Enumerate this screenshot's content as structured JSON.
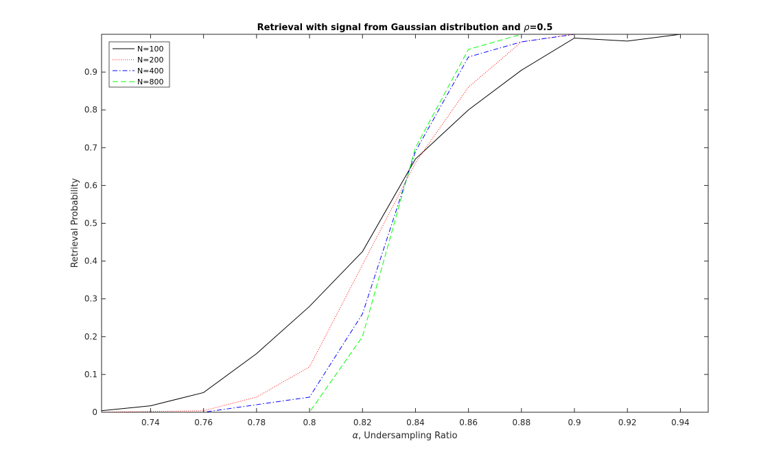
{
  "chart_data": {
    "type": "line",
    "title_prefix": "Retrieval with signal from Gaussian distribution and ",
    "title_symbol": "ρ",
    "title_suffix": "=0.5",
    "xlabel_symbol": "α",
    "xlabel_text": ", Undersampling Ratio",
    "ylabel": "Retrieval Probability",
    "xlim": [
      0.7215,
      0.9505
    ],
    "ylim": [
      0,
      1
    ],
    "x_ticks": [
      0.74,
      0.76,
      0.78,
      0.8,
      0.82,
      0.84,
      0.86,
      0.88,
      0.9,
      0.92,
      0.94
    ],
    "x_tick_labels": [
      "0.74",
      "0.76",
      "0.78",
      "0.8",
      "0.82",
      "0.84",
      "0.86",
      "0.88",
      "0.9",
      "0.92",
      "0.94"
    ],
    "y_ticks": [
      0,
      0.1,
      0.2,
      0.3,
      0.4,
      0.5,
      0.6,
      0.7,
      0.8,
      0.9
    ],
    "y_tick_labels": [
      "0",
      "0.1",
      "0.2",
      "0.3",
      "0.4",
      "0.5",
      "0.6",
      "0.7",
      "0.8",
      "0.9"
    ],
    "grid": false,
    "legend_position": "top-left",
    "series": [
      {
        "name": "N=100",
        "color": "#000000",
        "dash": "",
        "x": [
          0.72,
          0.74,
          0.76,
          0.78,
          0.8,
          0.82,
          0.84,
          0.86,
          0.88,
          0.9,
          0.92,
          0.94
        ],
        "y": [
          0.003,
          0.017,
          0.052,
          0.155,
          0.28,
          0.425,
          0.67,
          0.8,
          0.905,
          0.99,
          0.982,
          1.0
        ]
      },
      {
        "name": "N=200",
        "color": "#ff0000",
        "dash": "1,2",
        "x": [
          0.72,
          0.74,
          0.76,
          0.78,
          0.8,
          0.82,
          0.84,
          0.86,
          0.88,
          0.9,
          0.92,
          0.94
        ],
        "y": [
          0.0,
          0.002,
          0.004,
          0.04,
          0.12,
          0.39,
          0.66,
          0.86,
          0.98,
          1.0,
          1.0,
          1.0
        ]
      },
      {
        "name": "N=400",
        "color": "#0000ff",
        "dash": "7,3,1.5,3",
        "x": [
          0.72,
          0.74,
          0.76,
          0.78,
          0.8,
          0.82,
          0.84,
          0.86,
          0.88,
          0.9,
          0.92,
          0.94
        ],
        "y": [
          0.0,
          0.0,
          0.0,
          0.02,
          0.04,
          0.26,
          0.69,
          0.94,
          0.98,
          1.0,
          1.0,
          1.0
        ]
      },
      {
        "name": "N=800",
        "color": "#00ff00",
        "dash": "8,4",
        "x": [
          0.72,
          0.74,
          0.76,
          0.78,
          0.8,
          0.82,
          0.84,
          0.86,
          0.88,
          0.9,
          0.92,
          0.94
        ],
        "y": [
          0.0,
          0.0,
          0.0,
          0.0,
          0.0,
          0.2,
          0.7,
          0.96,
          1.0,
          1.0,
          1.0,
          1.0
        ]
      }
    ]
  }
}
